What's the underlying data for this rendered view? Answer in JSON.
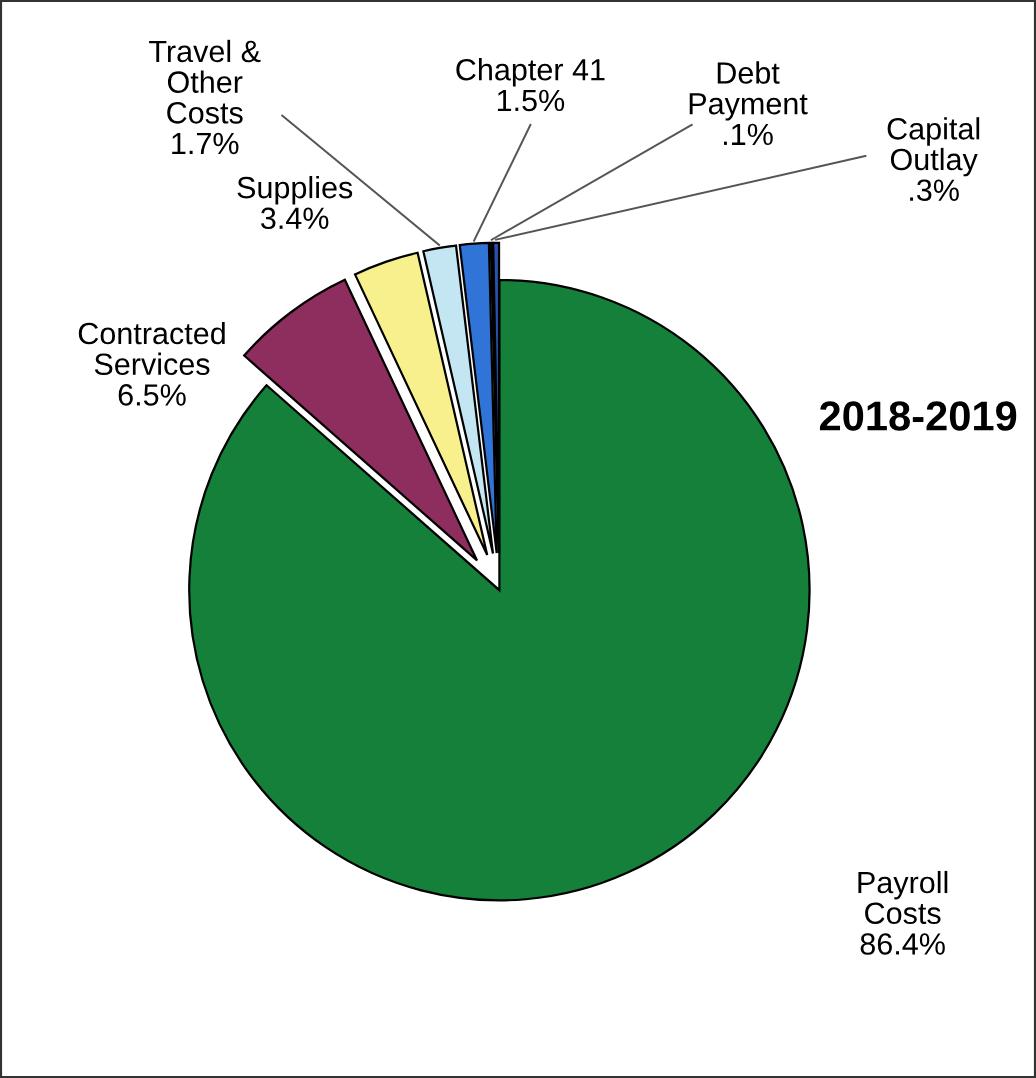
{
  "chart_data": {
    "type": "pie",
    "title": "2018-2019",
    "categories": [
      "Payroll\nCosts",
      "Contracted\nServices",
      "Supplies",
      "Travel &\nOther\nCosts",
      "Chapter 41",
      "Debt\nPayment",
      "Capital\nOutlay"
    ],
    "values": [
      86.4,
      6.5,
      3.4,
      1.7,
      1.5,
      0.1,
      0.3
    ],
    "value_labels": [
      "86.4%",
      "6.5%",
      "3.4%",
      "1.7%",
      "1.5%",
      ".1%",
      ".3%"
    ],
    "colors": [
      "#15803a",
      "#8e2e5e",
      "#f7f08c",
      "#c4e6f2",
      "#2f74d6",
      "#1c3c8a",
      "#2a52a8"
    ]
  }
}
